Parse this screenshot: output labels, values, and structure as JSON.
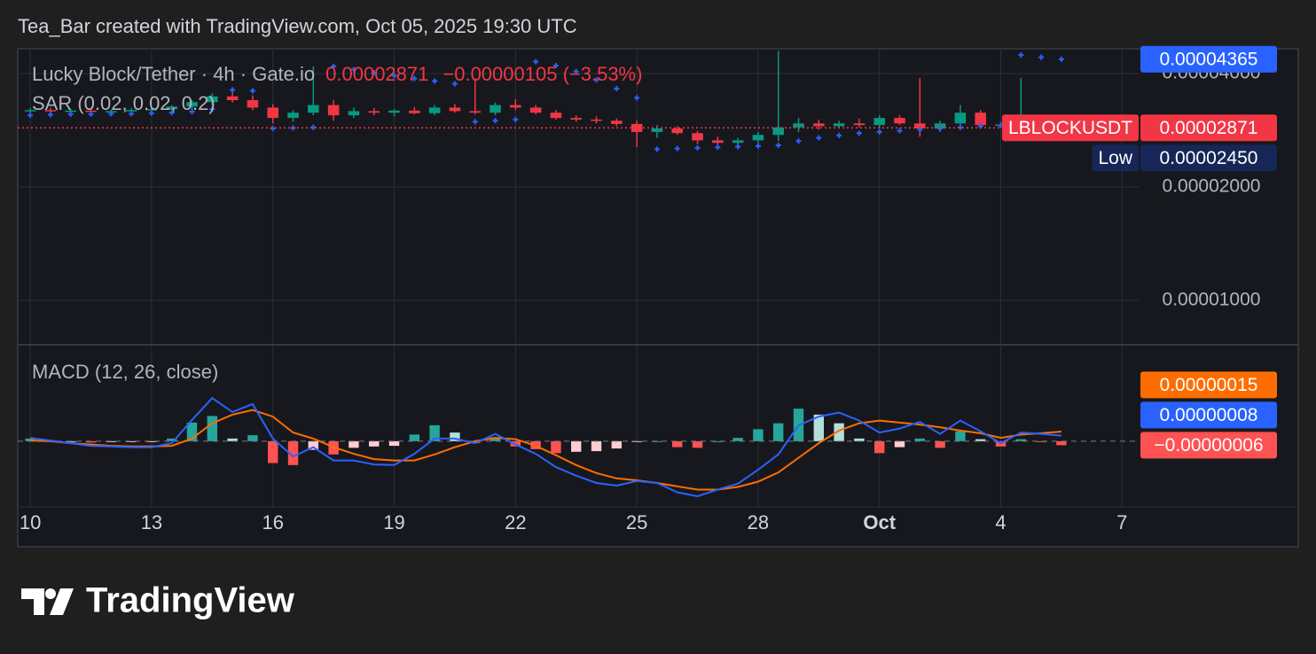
{
  "header": {
    "text": "Tea_Bar created with TradingView.com, Oct 05, 2025 19:30 UTC"
  },
  "chart_data": [
    {
      "type": "candlestick",
      "title": "Lucky Block/Tether · 4h · Gate.io",
      "symbol": "LBLOCKUSDT",
      "change": "−0.00000105 (−3.53%)",
      "colors": {
        "up": "#089981",
        "down": "#f23645"
      },
      "log_scale": true,
      "grid": true,
      "xlim": [
        -0.31,
        27.41
      ],
      "xticks": [
        {
          "value": 0,
          "label": "10"
        },
        {
          "value": 3,
          "label": "13"
        },
        {
          "value": 6,
          "label": "16"
        },
        {
          "value": 9,
          "label": "19"
        },
        {
          "value": 12,
          "label": "22"
        },
        {
          "value": 15,
          "label": "25"
        },
        {
          "value": 18,
          "label": "28"
        },
        {
          "value": 21,
          "label": "Oct",
          "bold": true
        },
        {
          "value": 24,
          "label": "4"
        },
        {
          "value": 27,
          "label": "7"
        }
      ],
      "ylim": [
        7.67e-06,
        4.656e-05
      ],
      "yticks": [
        {
          "value": 1e-05,
          "label": "0.00001000"
        },
        {
          "value": 2e-05,
          "label": "0.00002000"
        },
        {
          "value": 4e-05,
          "label": "0.00004000"
        }
      ],
      "x": [
        0,
        0.5,
        1,
        1.5,
        2,
        2.5,
        3,
        3.5,
        4,
        4.5,
        5,
        5.5,
        6,
        6.5,
        7,
        7.5,
        8,
        8.5,
        9,
        9.5,
        10,
        10.5,
        11,
        11.5,
        12,
        12.5,
        13,
        13.5,
        14,
        14.5,
        15,
        15.5,
        16,
        16.5,
        17,
        17.5,
        18,
        18.5,
        19,
        19.5,
        20,
        20.5,
        21,
        21.5,
        22,
        22.5,
        23,
        23.5,
        24,
        24.5,
        25,
        25.5
      ],
      "open": [
        3.19e-05,
        3.2e-05,
        3.18e-05,
        3.19e-05,
        3.17e-05,
        3.18e-05,
        3.2e-05,
        3.22e-05,
        3.27e-05,
        3.36e-05,
        3.48e-05,
        3.4e-05,
        3.25e-05,
        3.05e-05,
        3.15e-05,
        3.3e-05,
        3.1e-05,
        3.18e-05,
        3.15e-05,
        3.19e-05,
        3.14e-05,
        3.25e-05,
        3.18e-05,
        3.15e-05,
        3.3e-05,
        3.25e-05,
        3.15e-05,
        3.05e-05,
        3.02e-05,
        3e-05,
        2.94e-05,
        2.8e-05,
        2.86e-05,
        2.78e-05,
        2.66e-05,
        2.62e-05,
        2.66e-05,
        2.75e-05,
        2.88e-05,
        2.95e-05,
        2.9e-05,
        2.95e-05,
        2.92e-05,
        3.05e-05,
        2.95e-05,
        2.86e-05,
        2.95e-05,
        3.15e-05,
        2.92e-05,
        2.93e-05,
        2.98e-05,
        2.9e-05
      ],
      "high": [
        3.24e-05,
        3.25e-05,
        3.22e-05,
        3.23e-05,
        3.21e-05,
        3.24e-05,
        3.26e-05,
        3.3e-05,
        3.4e-05,
        3.55e-05,
        3.6e-05,
        3.5e-05,
        3.32e-05,
        3.2e-05,
        4.18e-05,
        3.4e-05,
        3.25e-05,
        3.24e-05,
        3.22e-05,
        3.26e-05,
        3.3e-05,
        3.32e-05,
        3.89e-05,
        3.35e-05,
        3.42e-05,
        3.3e-05,
        3.2e-05,
        3.1e-05,
        3.08e-05,
        3.04e-05,
        3e-05,
        2.92e-05,
        2.9e-05,
        2.82e-05,
        2.72e-05,
        2.7e-05,
        2.8e-05,
        4.6e-05,
        3.05e-05,
        3.02e-05,
        3e-05,
        3.04e-05,
        3.1e-05,
        3.1e-05,
        3.89e-05,
        3e-05,
        3.3e-05,
        3.2e-05,
        2.98e-05,
        3.89e-05,
        3.08e-05,
        2.96e-05
      ],
      "low": [
        3.15e-05,
        3.16e-05,
        3.14e-05,
        3.15e-05,
        3.13e-05,
        3.15e-05,
        3.16e-05,
        3.18e-05,
        3.22e-05,
        3.3e-05,
        3.35e-05,
        3.2e-05,
        2.95e-05,
        2.98e-05,
        3.1e-05,
        3e-05,
        3.05e-05,
        3.1e-05,
        3.08e-05,
        3.12e-05,
        3.1e-05,
        3.15e-05,
        3.12e-05,
        3.1e-05,
        3.2e-05,
        3.12e-05,
        3.02e-05,
        2.98e-05,
        2.95e-05,
        2.9e-05,
        2.55e-05,
        2.7e-05,
        2.75e-05,
        2.6e-05,
        2.58e-05,
        2.58e-05,
        2.6e-05,
        2.65e-05,
        2.8e-05,
        2.84e-05,
        2.86e-05,
        2.88e-05,
        2.86e-05,
        2.92e-05,
        2.72e-05,
        2.8e-05,
        2.9e-05,
        2.9e-05,
        2.88e-05,
        2.84e-05,
        2.86e-05,
        2.84e-05
      ],
      "close": [
        3.2e-05,
        3.18e-05,
        3.19e-05,
        3.17e-05,
        3.18e-05,
        3.2e-05,
        3.22e-05,
        3.27e-05,
        3.36e-05,
        3.48e-05,
        3.4e-05,
        3.25e-05,
        3.05e-05,
        3.15e-05,
        3.3e-05,
        3.1e-05,
        3.18e-05,
        3.15e-05,
        3.19e-05,
        3.14e-05,
        3.25e-05,
        3.18e-05,
        3.15e-05,
        3.3e-05,
        3.25e-05,
        3.15e-05,
        3.05e-05,
        3.02e-05,
        3e-05,
        2.94e-05,
        2.8e-05,
        2.86e-05,
        2.78e-05,
        2.66e-05,
        2.62e-05,
        2.66e-05,
        2.75e-05,
        2.88e-05,
        2.95e-05,
        2.9e-05,
        2.95e-05,
        2.92e-05,
        3.05e-05,
        2.95e-05,
        2.86e-05,
        2.95e-05,
        3.15e-05,
        2.92e-05,
        2.93e-05,
        2.98e-05,
        2.9e-05,
        2.871e-05
      ],
      "last_value_label": "0.00002871",
      "sar": {
        "name": "SAR (0.02, 0.02, 0.2)",
        "color": "#2962ff",
        "values": [
          3.1e-05,
          3.11e-05,
          3.12e-05,
          3.12e-05,
          3.13e-05,
          3.13e-05,
          3.14e-05,
          3.15e-05,
          3.17e-05,
          3.22e-05,
          3.62e-05,
          3.6e-05,
          2.86e-05,
          2.87e-05,
          2.88e-05,
          4.18e-05,
          4.1e-05,
          4.02e-05,
          3.95e-05,
          3.88e-05,
          3.82e-05,
          3.76e-05,
          2.98e-05,
          3e-05,
          3.02e-05,
          4.3e-05,
          4.2e-05,
          4.05e-05,
          3.85e-05,
          3.65e-05,
          3.45e-05,
          2.52e-05,
          2.53e-05,
          2.54e-05,
          2.55e-05,
          2.56e-05,
          2.57e-05,
          2.58e-05,
          2.65e-05,
          2.7e-05,
          2.74e-05,
          2.78e-05,
          2.8e-05,
          2.82e-05,
          2.84e-05,
          2.86e-05,
          2.88e-05,
          2.9e-05,
          2.91e-05,
          4.48e-05,
          4.42e-05,
          4.365e-05
        ],
        "last_value_label": "0.00004365"
      },
      "low_marker": {
        "label": "Low",
        "value": 2.45e-05,
        "value_label": "0.00002450"
      }
    },
    {
      "type": "macd",
      "title": "MACD (12, 26, close)",
      "ylim": [
        -9.9e-07,
        1.44e-06
      ],
      "macd": {
        "color": "#2962ff",
        "values": [
          5e-08,
          1e-08,
          -3e-08,
          -7e-08,
          -8e-08,
          -9e-08,
          -9e-08,
          -3e-08,
          3.2e-07,
          6.5e-07,
          4.4e-07,
          5.6e-07,
          4e-08,
          -2.3e-07,
          -9e-08,
          -2.9e-07,
          -2.9e-07,
          -3.5e-07,
          -3.6e-07,
          -1.9e-07,
          4e-08,
          4e-08,
          -3e-08,
          1.1e-07,
          -5e-08,
          -1.9e-07,
          -3.9e-07,
          -5.2e-07,
          -6.3e-07,
          -6.7e-07,
          -6e-07,
          -6.3e-07,
          -7.7e-07,
          -8.3e-07,
          -7.3e-07,
          -6.4e-07,
          -4.3e-07,
          -2e-07,
          2.4e-07,
          3.7e-07,
          4.3e-07,
          3.1e-07,
          1.3e-07,
          1.9e-07,
          2.9e-07,
          1.1e-07,
          3.1e-07,
          1.5e-07,
          -3e-08,
          1.3e-07,
          1.1e-07,
          8.4e-08
        ],
        "last_value_label": "0.00000008"
      },
      "signal": {
        "color": "#ff6d00",
        "values": [
          1e-08,
          0,
          -3e-08,
          -5e-08,
          -7e-08,
          -8e-08,
          -8e-08,
          -7e-08,
          4e-08,
          2.7e-07,
          4e-07,
          4.7e-07,
          3.7e-07,
          1.3e-07,
          4e-08,
          -9e-08,
          -1.9e-07,
          -2.7e-07,
          -2.9e-07,
          -2.9e-07,
          -2e-07,
          -9e-08,
          0,
          5e-08,
          3e-08,
          -7e-08,
          -2.1e-07,
          -3.6e-07,
          -4.8e-07,
          -5.6e-07,
          -5.9e-07,
          -6.3e-07,
          -6.8e-07,
          -7.3e-07,
          -7.3e-07,
          -6.9e-07,
          -6.1e-07,
          -4.7e-07,
          -2.5e-07,
          -3e-08,
          1.6e-07,
          2.7e-07,
          3.1e-07,
          2.8e-07,
          2.5e-07,
          2.1e-07,
          1.6e-07,
          1.2e-07,
          5e-08,
          1e-07,
          1.2e-07,
          1.45e-07
        ],
        "last_value_label": "0.00000015"
      },
      "histogram": {
        "colors": {
          "up_rising": "#26a69a",
          "up_falling": "#b2dfdb",
          "down_falling": "#ff5252",
          "down_rising": "#ffcdd2"
        },
        "values": [
          4e-08,
          1e-08,
          0,
          -2e-08,
          -1e-08,
          -1e-08,
          -1e-08,
          4e-08,
          2.8e-07,
          3.8e-07,
          4e-08,
          9e-08,
          -3.3e-07,
          -3.6e-07,
          -1.3e-07,
          -2e-07,
          -1e-07,
          -8e-08,
          -7e-08,
          1e-07,
          2.4e-07,
          1.3e-07,
          -3e-08,
          6e-08,
          -8e-08,
          -1.2e-07,
          -1.8e-07,
          -1.6e-07,
          -1.5e-07,
          -1.1e-07,
          -1e-08,
          0,
          -9e-08,
          -1e-07,
          0,
          5e-08,
          1.8e-07,
          2.7e-07,
          4.9e-07,
          4e-07,
          2.7e-07,
          4e-08,
          -1.8e-07,
          -9e-08,
          4e-08,
          -1e-07,
          1.5e-07,
          3e-08,
          -8e-08,
          3e-08,
          -1e-08,
          -6.1e-08
        ],
        "color": "#ff5252",
        "last_value_label": "−0.00000006"
      }
    }
  ],
  "footer": {
    "brand": "TradingView"
  }
}
